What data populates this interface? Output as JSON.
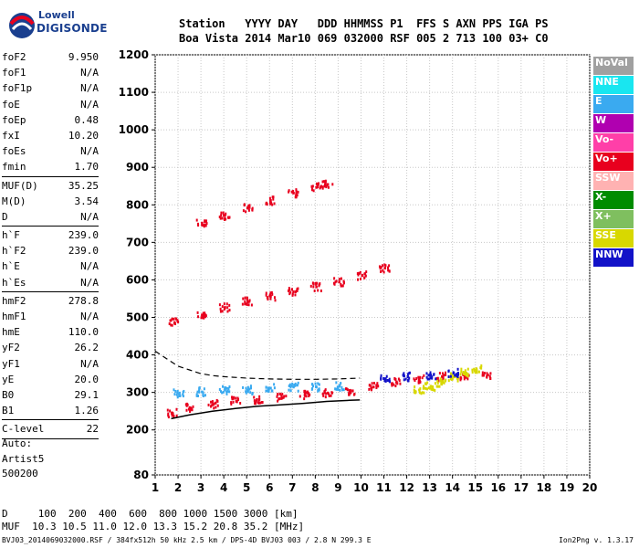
{
  "logo": {
    "line1": "Lowell",
    "line2": "DIGISONDE"
  },
  "header": {
    "labels": "Station   YYYY DAY   DDD HHMMSS P1  FFS S AXN PPS IGA PS",
    "values": "Boa Vista 2014 Mar10 069 032000 RSF 005 2 713 100 03+ C0"
  },
  "params": [
    {
      "name": "foF2",
      "value": "9.950"
    },
    {
      "name": "foF1",
      "value": "N/A"
    },
    {
      "name": "foF1p",
      "value": "N/A"
    },
    {
      "name": "foE",
      "value": "N/A"
    },
    {
      "name": "foEp",
      "value": "0.48"
    },
    {
      "name": "fxI",
      "value": "10.20"
    },
    {
      "name": "foEs",
      "value": "N/A"
    },
    {
      "name": "fmin",
      "value": "1.70"
    },
    {
      "name": "MUF(D)",
      "value": "35.25"
    },
    {
      "name": "M(D)",
      "value": "3.54"
    },
    {
      "name": "D",
      "value": "N/A"
    },
    {
      "name": "h`F",
      "value": "239.0"
    },
    {
      "name": "h`F2",
      "value": "239.0"
    },
    {
      "name": "h`E",
      "value": "N/A"
    },
    {
      "name": "h`Es",
      "value": "N/A"
    },
    {
      "name": "hmF2",
      "value": "278.8"
    },
    {
      "name": "hmF1",
      "value": "N/A"
    },
    {
      "name": "hmE",
      "value": "110.0"
    },
    {
      "name": "yF2",
      "value": "26.2"
    },
    {
      "name": "yF1",
      "value": "N/A"
    },
    {
      "name": "yE",
      "value": "20.0"
    },
    {
      "name": "B0",
      "value": "29.1"
    },
    {
      "name": "B1",
      "value": "1.26"
    },
    {
      "name": "C-level",
      "value": "22"
    }
  ],
  "auto": {
    "line1": "Auto:",
    "line2": "Artist5",
    "line3": "500200"
  },
  "bottom": {
    "d_row": "D     100  200  400  600  800 1000 1500 3000 [km]",
    "muf_row": "MUF  10.3 10.5 11.0 12.0 13.3 15.2 20.8 35.2 [MHz]",
    "file_info": "BVJ03_2014069032000.RSF / 384fx512h 50 kHz 2.5 km / DPS-4D BVJ03 003 / 2.8 N 299.3 E",
    "version": "Ion2Png v. 1.3.17"
  },
  "legend": [
    {
      "label": "NoVal",
      "color": "#a0a0a0"
    },
    {
      "label": "NNE",
      "color": "#19e6f0"
    },
    {
      "label": "E",
      "color": "#3aaaf0"
    },
    {
      "label": "W",
      "color": "#b000b0"
    },
    {
      "label": "Vo-",
      "color": "#ff3fa8"
    },
    {
      "label": "Vo+",
      "color": "#e8001e"
    },
    {
      "label": "SSW",
      "color": "#ffb2b2"
    },
    {
      "label": "X-",
      "color": "#008c00"
    },
    {
      "label": "X+",
      "color": "#7fbf5f"
    },
    {
      "label": "SSE",
      "color": "#d8d800"
    },
    {
      "label": "NNW",
      "color": "#1212c8"
    }
  ],
  "chart_data": {
    "type": "scatter",
    "xlabel": "",
    "ylabel": "",
    "xlim": [
      1,
      20
    ],
    "ylim": [
      80,
      1200
    ],
    "x_ticks": [
      1,
      2,
      3,
      4,
      5,
      6,
      7,
      8,
      9,
      10,
      11,
      12,
      13,
      14,
      15,
      16,
      17,
      18,
      19,
      20
    ],
    "y_ticks": [
      80,
      200,
      300,
      400,
      500,
      600,
      700,
      800,
      900,
      1000,
      1100,
      1200
    ],
    "grid": true,
    "traces": [
      {
        "name": "F2 trace",
        "color": "#e8001e",
        "points": [
          [
            1.7,
            248
          ],
          [
            2.5,
            262
          ],
          [
            3.5,
            272
          ],
          [
            4.5,
            280
          ],
          [
            5.5,
            285
          ],
          [
            6.5,
            290
          ],
          [
            7.5,
            296
          ],
          [
            8.5,
            302
          ],
          [
            9.5,
            308
          ],
          [
            10.5,
            318
          ],
          [
            11.5,
            330
          ],
          [
            12.5,
            340
          ],
          [
            13.5,
            345
          ],
          [
            14.5,
            345
          ],
          [
            15.5,
            350
          ]
        ]
      },
      {
        "name": "F2 cluster",
        "color": "#3aaaf0",
        "points": [
          [
            2,
            300
          ],
          [
            3,
            305
          ],
          [
            4,
            310
          ],
          [
            5,
            310
          ],
          [
            6,
            315
          ],
          [
            7,
            318
          ],
          [
            8,
            318
          ],
          [
            9,
            320
          ]
        ]
      },
      {
        "name": "2nd hop",
        "color": "#e8001e",
        "points": [
          [
            1.8,
            490
          ],
          [
            3,
            510
          ],
          [
            4,
            530
          ],
          [
            5,
            545
          ],
          [
            6,
            560
          ],
          [
            7,
            572
          ],
          [
            8,
            585
          ],
          [
            9,
            598
          ],
          [
            10,
            615
          ],
          [
            11,
            635
          ]
        ]
      },
      {
        "name": "3rd hop",
        "color": "#e8001e",
        "points": [
          [
            3,
            755
          ],
          [
            4,
            775
          ],
          [
            5,
            795
          ],
          [
            6,
            815
          ],
          [
            7,
            835
          ],
          [
            8,
            850
          ],
          [
            8.5,
            858
          ]
        ]
      },
      {
        "name": "SSE points",
        "color": "#d8d800",
        "points": [
          [
            12.5,
            310
          ],
          [
            13,
            320
          ],
          [
            13.5,
            330
          ],
          [
            14,
            345
          ],
          [
            14.5,
            355
          ],
          [
            15,
            365
          ]
        ]
      },
      {
        "name": "NNW points",
        "color": "#1212c8",
        "points": [
          [
            11,
            340
          ],
          [
            12,
            345
          ],
          [
            13,
            350
          ],
          [
            14,
            355
          ]
        ]
      }
    ],
    "profile_curve": [
      [
        1.7,
        230
      ],
      [
        2.5,
        240
      ],
      [
        3.5,
        250
      ],
      [
        4.5,
        257
      ],
      [
        5.5,
        263
      ],
      [
        6.5,
        267
      ],
      [
        7.5,
        271
      ],
      [
        8.5,
        276
      ],
      [
        9.5,
        279
      ],
      [
        9.95,
        280
      ]
    ],
    "dashed_curve": [
      [
        1,
        410
      ],
      [
        1.5,
        390
      ],
      [
        2,
        370
      ],
      [
        2.5,
        360
      ],
      [
        3,
        350
      ],
      [
        3.5,
        345
      ],
      [
        4,
        342
      ],
      [
        5,
        338
      ],
      [
        6,
        336
      ],
      [
        7,
        335
      ],
      [
        8,
        335
      ],
      [
        9,
        336
      ],
      [
        9.95,
        338
      ]
    ]
  }
}
